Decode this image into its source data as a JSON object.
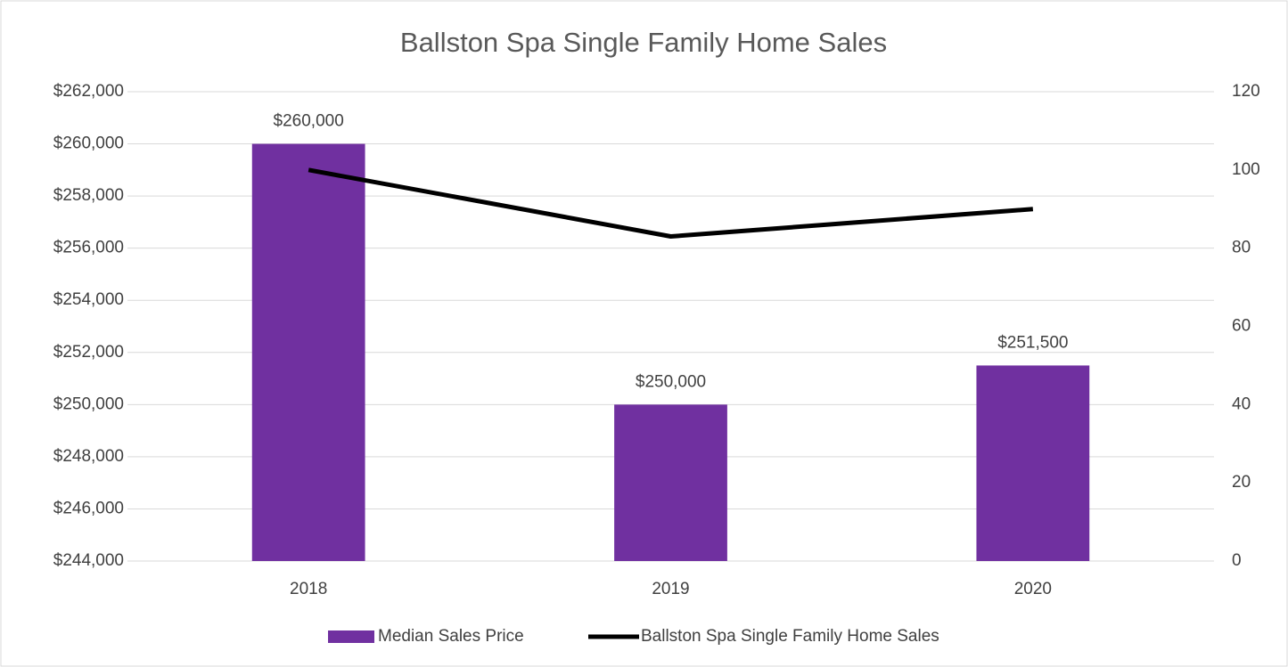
{
  "chart_data": {
    "type": "bar",
    "title": "Ballston Spa Single Family Home Sales",
    "categories": [
      "2018",
      "2019",
      "2020"
    ],
    "series": [
      {
        "name": "Median Sales Price",
        "color": "#7030a0",
        "values": [
          260000,
          250000,
          251500
        ],
        "value_labels": [
          "$260,000",
          "$250,000",
          "$251,500"
        ]
      },
      {
        "name": "Ballston Spa Single Family Home Sales",
        "color": "#000000",
        "type": "line",
        "axis": "y2",
        "values": [
          100,
          83,
          90
        ]
      }
    ],
    "ylim": [
      244000,
      262000
    ],
    "yticks": [
      {
        "value": 244000,
        "label": "$244,000"
      },
      {
        "value": 246000,
        "label": "$246,000"
      },
      {
        "value": 248000,
        "label": "$248,000"
      },
      {
        "value": 250000,
        "label": "$250,000"
      },
      {
        "value": 252000,
        "label": "$252,000"
      },
      {
        "value": 254000,
        "label": "$254,000"
      },
      {
        "value": 256000,
        "label": "$256,000"
      },
      {
        "value": 258000,
        "label": "$258,000"
      },
      {
        "value": 260000,
        "label": "$260,000"
      },
      {
        "value": 262000,
        "label": "$262,000"
      }
    ],
    "y2lim": [
      0,
      120
    ],
    "y2ticks": [
      0,
      20,
      40,
      60,
      80,
      100,
      120
    ],
    "grid": true,
    "legend": "bottom"
  }
}
